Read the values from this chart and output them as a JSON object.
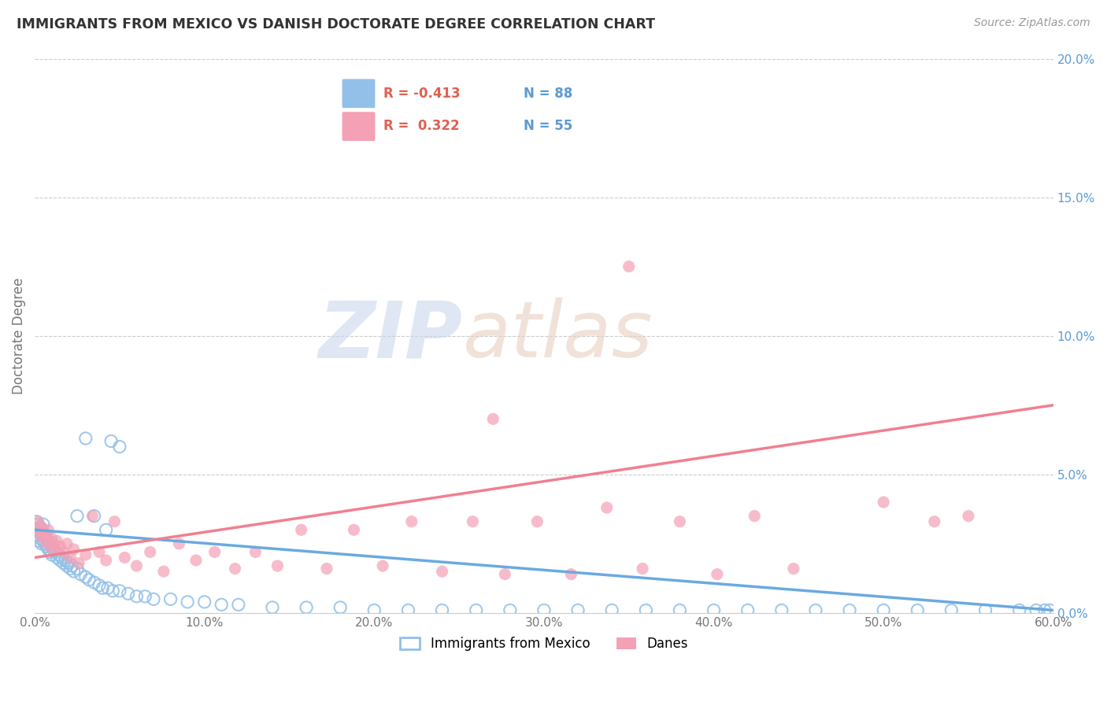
{
  "title": "IMMIGRANTS FROM MEXICO VS DANISH DOCTORATE DEGREE CORRELATION CHART",
  "source": "Source: ZipAtlas.com",
  "ylabel": "Doctorate Degree",
  "blue_label": "Immigrants from Mexico",
  "pink_label": "Danes",
  "blue_R": -0.413,
  "blue_N": 88,
  "pink_R": 0.322,
  "pink_N": 55,
  "watermark_zip": "ZIP",
  "watermark_atlas": "atlas",
  "blue_color": "#92C0E8",
  "pink_color": "#F4A0B5",
  "blue_line_color": "#6AAAE0",
  "pink_line_color": "#F08090",
  "right_tick_color": "#5B9BD5",
  "grid_color": "#CCCCCC",
  "title_color": "#333333",
  "source_color": "#999999",
  "ylabel_color": "#777777",
  "xtick_color": "#777777",
  "xlim": [
    0.0,
    0.6
  ],
  "ylim": [
    0.0,
    0.2
  ],
  "ytick_vals": [
    0.0,
    0.05,
    0.1,
    0.15,
    0.2
  ],
  "ytick_labels": [
    "0.0%",
    "5.0%",
    "10.0%",
    "15.0%",
    "20.0%"
  ],
  "xtick_vals": [
    0.0,
    0.1,
    0.2,
    0.3,
    0.4,
    0.5,
    0.6
  ],
  "xtick_labels": [
    "0.0%",
    "10.0%",
    "20.0%",
    "30.0%",
    "40.0%",
    "50.0%",
    "60.0%"
  ],
  "blue_x": [
    0.001,
    0.001,
    0.002,
    0.002,
    0.002,
    0.003,
    0.003,
    0.003,
    0.004,
    0.004,
    0.004,
    0.005,
    0.005,
    0.005,
    0.006,
    0.006,
    0.007,
    0.007,
    0.008,
    0.008,
    0.009,
    0.009,
    0.01,
    0.01,
    0.011,
    0.012,
    0.013,
    0.014,
    0.015,
    0.016,
    0.017,
    0.018,
    0.019,
    0.02,
    0.021,
    0.022,
    0.023,
    0.025,
    0.027,
    0.03,
    0.032,
    0.035,
    0.038,
    0.04,
    0.043,
    0.046,
    0.05,
    0.055,
    0.06,
    0.065,
    0.07,
    0.08,
    0.09,
    0.1,
    0.11,
    0.12,
    0.14,
    0.16,
    0.18,
    0.2,
    0.22,
    0.24,
    0.26,
    0.28,
    0.3,
    0.32,
    0.34,
    0.36,
    0.38,
    0.4,
    0.42,
    0.44,
    0.46,
    0.48,
    0.5,
    0.52,
    0.54,
    0.56,
    0.58,
    0.59,
    0.595,
    0.598,
    0.03,
    0.025,
    0.045,
    0.05,
    0.035,
    0.042
  ],
  "blue_y": [
    0.033,
    0.03,
    0.032,
    0.028,
    0.026,
    0.031,
    0.029,
    0.027,
    0.03,
    0.028,
    0.025,
    0.032,
    0.029,
    0.026,
    0.028,
    0.025,
    0.027,
    0.024,
    0.026,
    0.023,
    0.025,
    0.022,
    0.024,
    0.021,
    0.023,
    0.022,
    0.02,
    0.021,
    0.019,
    0.02,
    0.018,
    0.019,
    0.017,
    0.018,
    0.016,
    0.017,
    0.015,
    0.016,
    0.014,
    0.013,
    0.012,
    0.011,
    0.01,
    0.009,
    0.009,
    0.008,
    0.008,
    0.007,
    0.006,
    0.006,
    0.005,
    0.005,
    0.004,
    0.004,
    0.003,
    0.003,
    0.002,
    0.002,
    0.002,
    0.001,
    0.001,
    0.001,
    0.001,
    0.001,
    0.001,
    0.001,
    0.001,
    0.001,
    0.001,
    0.001,
    0.001,
    0.001,
    0.001,
    0.001,
    0.001,
    0.001,
    0.001,
    0.001,
    0.001,
    0.001,
    0.001,
    0.001,
    0.063,
    0.035,
    0.062,
    0.06,
    0.035,
    0.03
  ],
  "pink_x": [
    0.001,
    0.002,
    0.003,
    0.004,
    0.005,
    0.006,
    0.007,
    0.008,
    0.009,
    0.01,
    0.011,
    0.012,
    0.013,
    0.015,
    0.017,
    0.019,
    0.021,
    0.023,
    0.026,
    0.03,
    0.034,
    0.038,
    0.042,
    0.047,
    0.053,
    0.06,
    0.068,
    0.076,
    0.085,
    0.095,
    0.106,
    0.118,
    0.13,
    0.143,
    0.157,
    0.172,
    0.188,
    0.205,
    0.222,
    0.24,
    0.258,
    0.277,
    0.296,
    0.316,
    0.337,
    0.358,
    0.38,
    0.402,
    0.424,
    0.447,
    0.5,
    0.53,
    0.55,
    0.35,
    0.27
  ],
  "pink_y": [
    0.03,
    0.033,
    0.028,
    0.031,
    0.029,
    0.026,
    0.028,
    0.03,
    0.024,
    0.027,
    0.025,
    0.023,
    0.026,
    0.024,
    0.022,
    0.025,
    0.02,
    0.023,
    0.018,
    0.021,
    0.035,
    0.022,
    0.019,
    0.033,
    0.02,
    0.017,
    0.022,
    0.015,
    0.025,
    0.019,
    0.022,
    0.016,
    0.022,
    0.017,
    0.03,
    0.016,
    0.03,
    0.017,
    0.033,
    0.015,
    0.033,
    0.014,
    0.033,
    0.014,
    0.038,
    0.016,
    0.033,
    0.014,
    0.035,
    0.016,
    0.04,
    0.033,
    0.035,
    0.125,
    0.07
  ],
  "blue_trend_x": [
    0.0,
    0.6
  ],
  "blue_trend_y": [
    0.03,
    0.001
  ],
  "pink_trend_x": [
    0.0,
    0.6
  ],
  "pink_trend_y": [
    0.02,
    0.075
  ]
}
